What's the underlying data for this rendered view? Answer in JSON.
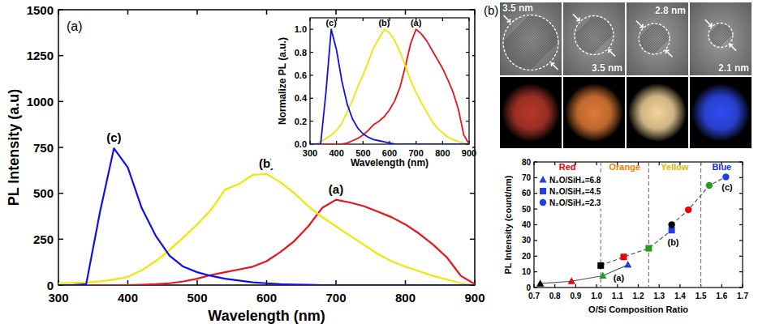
{
  "panel_labels": [
    "(a)",
    "(b)"
  ],
  "micrographs": [
    {
      "label": "3.5 nm",
      "color": "#b5372a"
    },
    {
      "label": "3.5 nm",
      "color": "#e07a35"
    },
    {
      "label": "2.8 nm",
      "color": "#f3d49a"
    },
    {
      "label": "2.1 nm",
      "color": "#2f4cf0"
    }
  ],
  "chart_data": [
    {
      "type": "line",
      "x_label": "Wavelength (nm)",
      "y_label": "PL Intensity (a.u)",
      "x": [
        300,
        320,
        340,
        360,
        380,
        400,
        420,
        440,
        460,
        480,
        500,
        520,
        540,
        560,
        580,
        600,
        620,
        640,
        660,
        680,
        700,
        720,
        740,
        760,
        780,
        800,
        820,
        840,
        860,
        880,
        900
      ],
      "xlim": [
        300,
        900
      ],
      "xticks": [
        300,
        400,
        500,
        600,
        700,
        800,
        900
      ],
      "ylim": [
        0,
        1500
      ],
      "yticks": [
        0,
        250,
        500,
        750,
        1000,
        1250,
        1500
      ],
      "series": [
        {
          "name": "(a)",
          "color": "#e8131b",
          "values": [
            0,
            0,
            0,
            0,
            0,
            0,
            2,
            5,
            10,
            20,
            35,
            55,
            70,
            85,
            100,
            130,
            180,
            240,
            320,
            420,
            465,
            450,
            430,
            400,
            370,
            330,
            280,
            220,
            150,
            50,
            5
          ]
        },
        {
          "name": "(b)",
          "color": "#f2e600",
          "values": [
            10,
            12,
            15,
            20,
            30,
            45,
            80,
            130,
            190,
            260,
            330,
            410,
            520,
            550,
            600,
            605,
            560,
            500,
            430,
            370,
            320,
            270,
            220,
            170,
            130,
            100,
            75,
            50,
            30,
            10,
            0
          ]
        },
        {
          "name": "(c)",
          "color": "#1010e6",
          "values": [
            0,
            0,
            5,
            400,
            745,
            640,
            420,
            270,
            160,
            100,
            70,
            50,
            35,
            25,
            15,
            10,
            5,
            3,
            2,
            0,
            0,
            0,
            0,
            0,
            0,
            0,
            0,
            0,
            0,
            0,
            0
          ]
        }
      ]
    },
    {
      "type": "line",
      "x_label": "Wavelength (nm)",
      "y_label": "Normalize PL (a.u.)",
      "x": [
        300,
        320,
        340,
        360,
        380,
        400,
        420,
        440,
        460,
        480,
        500,
        520,
        540,
        560,
        580,
        600,
        620,
        640,
        660,
        680,
        700,
        720,
        740,
        760,
        780,
        800,
        820,
        840,
        860,
        880,
        900
      ],
      "xlim": [
        300,
        900
      ],
      "xticks": [
        300,
        400,
        500,
        600,
        700,
        800,
        900
      ],
      "ylim": [
        0,
        1.1
      ],
      "yticks": [
        {
          "value": 0,
          "label": "0.0"
        },
        0.2,
        0.4,
        0.6,
        0.8,
        {
          "value": 1,
          "label": "1.0"
        }
      ],
      "series": [
        {
          "name": "(a)",
          "color": "#e8131b",
          "values": [
            0,
            0,
            0,
            0,
            0,
            0,
            0,
            0.01,
            0.03,
            0.05,
            0.08,
            0.12,
            0.17,
            0.2,
            0.24,
            0.3,
            0.38,
            0.5,
            0.68,
            0.88,
            1.0,
            0.96,
            0.9,
            0.82,
            0.74,
            0.66,
            0.56,
            0.45,
            0.3,
            0.08,
            0
          ]
        },
        {
          "name": "(b)",
          "color": "#f2e600",
          "values": [
            0,
            0,
            0.02,
            0.05,
            0.08,
            0.12,
            0.18,
            0.28,
            0.38,
            0.5,
            0.6,
            0.72,
            0.84,
            0.92,
            1.0,
            0.97,
            0.9,
            0.8,
            0.68,
            0.55,
            0.45,
            0.36,
            0.28,
            0.2,
            0.14,
            0.1,
            0.06,
            0.04,
            0.02,
            0.01,
            0
          ]
        },
        {
          "name": "(c)",
          "color": "#1010e6",
          "values": [
            0,
            0,
            0,
            0.45,
            1.0,
            0.82,
            0.55,
            0.35,
            0.22,
            0.14,
            0.09,
            0.06,
            0.04,
            0.03,
            0.02,
            0.01,
            0,
            0,
            0,
            0,
            0,
            0,
            0,
            0,
            0,
            0,
            0,
            0,
            0,
            0,
            0
          ]
        }
      ]
    },
    {
      "type": "scatter",
      "x_label": "O/Si Composition Ratio",
      "y_label": "PL Intensity (count/nm)",
      "xlim": [
        0.7,
        1.7
      ],
      "xticks": [
        0.7,
        0.8,
        0.9,
        {
          "value": 1,
          "label": "1.0"
        },
        1.1,
        1.2,
        1.3,
        1.4,
        1.5,
        1.6,
        1.7
      ],
      "ylim": [
        0,
        80
      ],
      "yticks": [
        0,
        10,
        20,
        30,
        40,
        50,
        60,
        70,
        80
      ],
      "legend": "upper left",
      "regions": [
        {
          "label": "Red",
          "from": 0.7,
          "to": 1.02,
          "color": "#e8000b"
        },
        {
          "label": "Orange",
          "from": 1.02,
          "to": 1.25,
          "color": "#f08000"
        },
        {
          "label": "Yellow",
          "from": 1.25,
          "to": 1.5,
          "color": "#d9b800"
        },
        {
          "label": "Blue",
          "from": 1.5,
          "to": 1.7,
          "color": "#1030e0"
        }
      ],
      "annotations": [
        {
          "text": "(a)",
          "x": 1.08,
          "y": 8.5
        },
        {
          "text": "(b)",
          "x": 1.34,
          "y": 31
        },
        {
          "text": "(c)",
          "x": 1.6,
          "y": 66
        }
      ],
      "series": [
        {
          "name": "N₂O/SiH₄=6.8",
          "marker": "triangle",
          "line_style": "solid",
          "color": "#1f3fe0",
          "colors": [
            "#000000",
            "#e8000b",
            "#1f9e1f",
            "#1f3fe0"
          ],
          "x": [
            0.73,
            0.88,
            1.03,
            1.15
          ],
          "values": [
            2.5,
            4,
            7.5,
            14.5
          ]
        },
        {
          "name": "N₂O/SiH₄=4.5",
          "marker": "square",
          "line_style": "dashed",
          "color": "#1f3fe0",
          "colors": [
            "#000000",
            "#e8000b",
            "#1f9e1f",
            "#1f3fe0"
          ],
          "x": [
            1.02,
            1.13,
            1.25,
            1.36
          ],
          "values": [
            14,
            19.5,
            25,
            36.5
          ]
        },
        {
          "name": "N₂O/SiH₄=2.3",
          "marker": "circle",
          "line_style": "dashed",
          "color": "#1f3fe0",
          "colors": [
            "#000000",
            "#e8000b",
            "#1f9e1f",
            "#1f3fe0"
          ],
          "x": [
            1.36,
            1.44,
            1.54,
            1.62
          ],
          "values": [
            40,
            49.5,
            65,
            70.5
          ]
        }
      ]
    }
  ]
}
